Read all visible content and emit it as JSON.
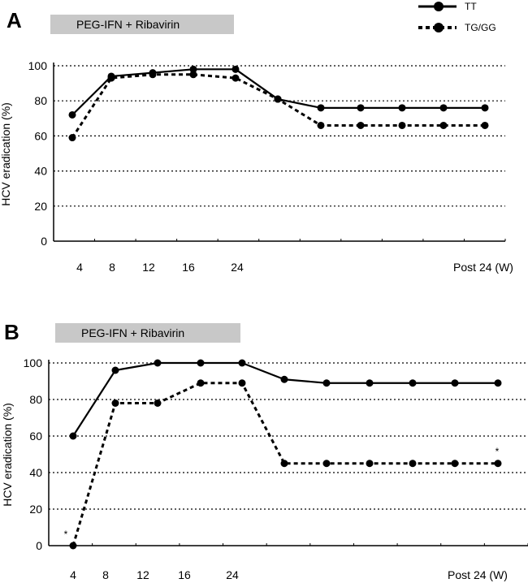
{
  "legend": [
    {
      "label": "TT",
      "style": "solid"
    },
    {
      "label": "TG/GG",
      "style": "dashed"
    }
  ],
  "chart_data": [
    {
      "type": "line",
      "panel": "A",
      "treatment_label": "PEG-IFN + Ribavirin",
      "ylabel": "HCV eradication (%)",
      "ylim": [
        0,
        100
      ],
      "yticks": [
        "0",
        "20",
        "40",
        "60",
        "80",
        "100"
      ],
      "grid": "horizontal dotted",
      "xticks": [
        "4",
        "8",
        "12",
        "16",
        "24",
        "Post 24 (W)"
      ],
      "series": [
        {
          "name": "TT",
          "style": "solid",
          "values": [
            72,
            94,
            96,
            98,
            98,
            81,
            76,
            76,
            76,
            76,
            76,
            76
          ]
        },
        {
          "name": "TG/GG",
          "style": "dashed",
          "values": [
            59,
            93,
            95,
            95,
            93,
            81,
            66,
            66,
            66,
            66,
            66,
            66
          ]
        }
      ],
      "annotations": []
    },
    {
      "type": "line",
      "panel": "B",
      "treatment_label": "PEG-IFN + Ribavirin",
      "ylabel": "HCV eradication (%)",
      "ylim": [
        0,
        100
      ],
      "yticks": [
        "0",
        "20",
        "40",
        "60",
        "80",
        "100"
      ],
      "grid": "horizontal dotted",
      "xticks": [
        "4",
        "8",
        "12",
        "16",
        "24",
        "Post 24 (W)"
      ],
      "series": [
        {
          "name": "TT",
          "style": "solid",
          "values": [
            60,
            96,
            100,
            100,
            100,
            91,
            89,
            89,
            89,
            89,
            89,
            89
          ]
        },
        {
          "name": "TG/GG",
          "style": "dashed",
          "values": [
            0,
            78,
            78,
            89,
            89,
            45,
            45,
            45,
            45,
            45,
            45,
            45
          ]
        }
      ],
      "annotations": [
        "*",
        "*"
      ]
    }
  ]
}
